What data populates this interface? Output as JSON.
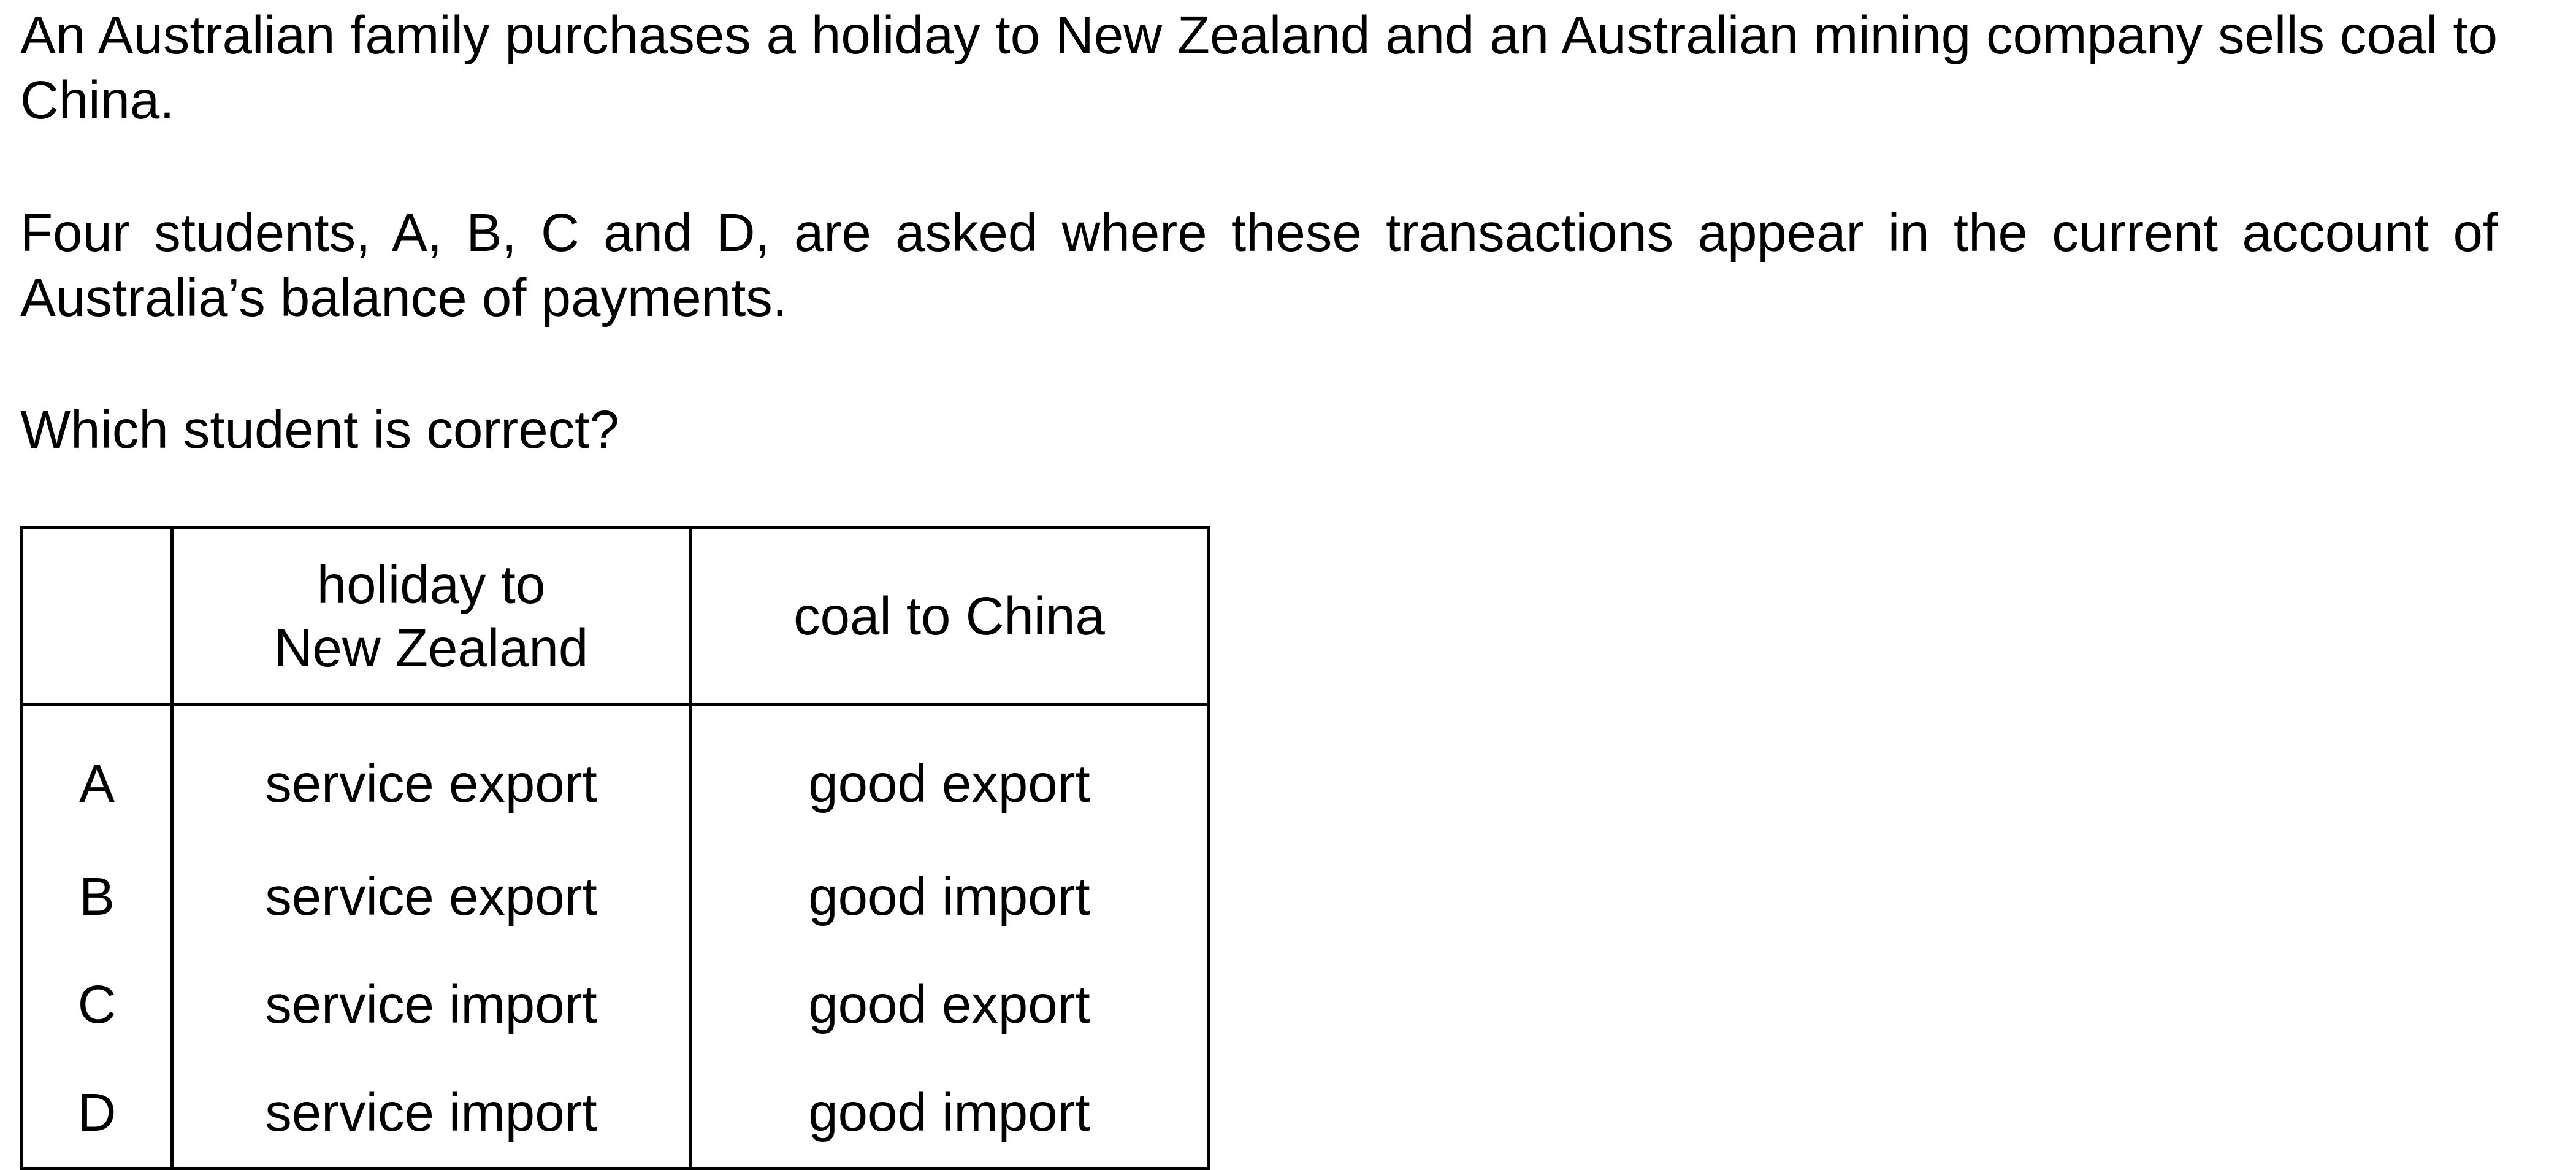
{
  "question": {
    "intro": "An Australian family purchases a holiday to New Zealand and an Australian mining company sells coal to China.",
    "context": "Four students, A, B, C and D, are asked where these transactions appear in the current account of Australia’s balance of payments.",
    "prompt": "Which student is correct?"
  },
  "table": {
    "headers": {
      "key": "",
      "holiday_line1": "holiday to",
      "holiday_line2": "New Zealand",
      "coal": "coal to China"
    },
    "rows": [
      {
        "key": "A",
        "holiday": "service export",
        "coal": "good export"
      },
      {
        "key": "B",
        "holiday": "service export",
        "coal": "good import"
      },
      {
        "key": "C",
        "holiday": "service import",
        "coal": "good export"
      },
      {
        "key": "D",
        "holiday": "service import",
        "coal": "good import"
      }
    ]
  }
}
